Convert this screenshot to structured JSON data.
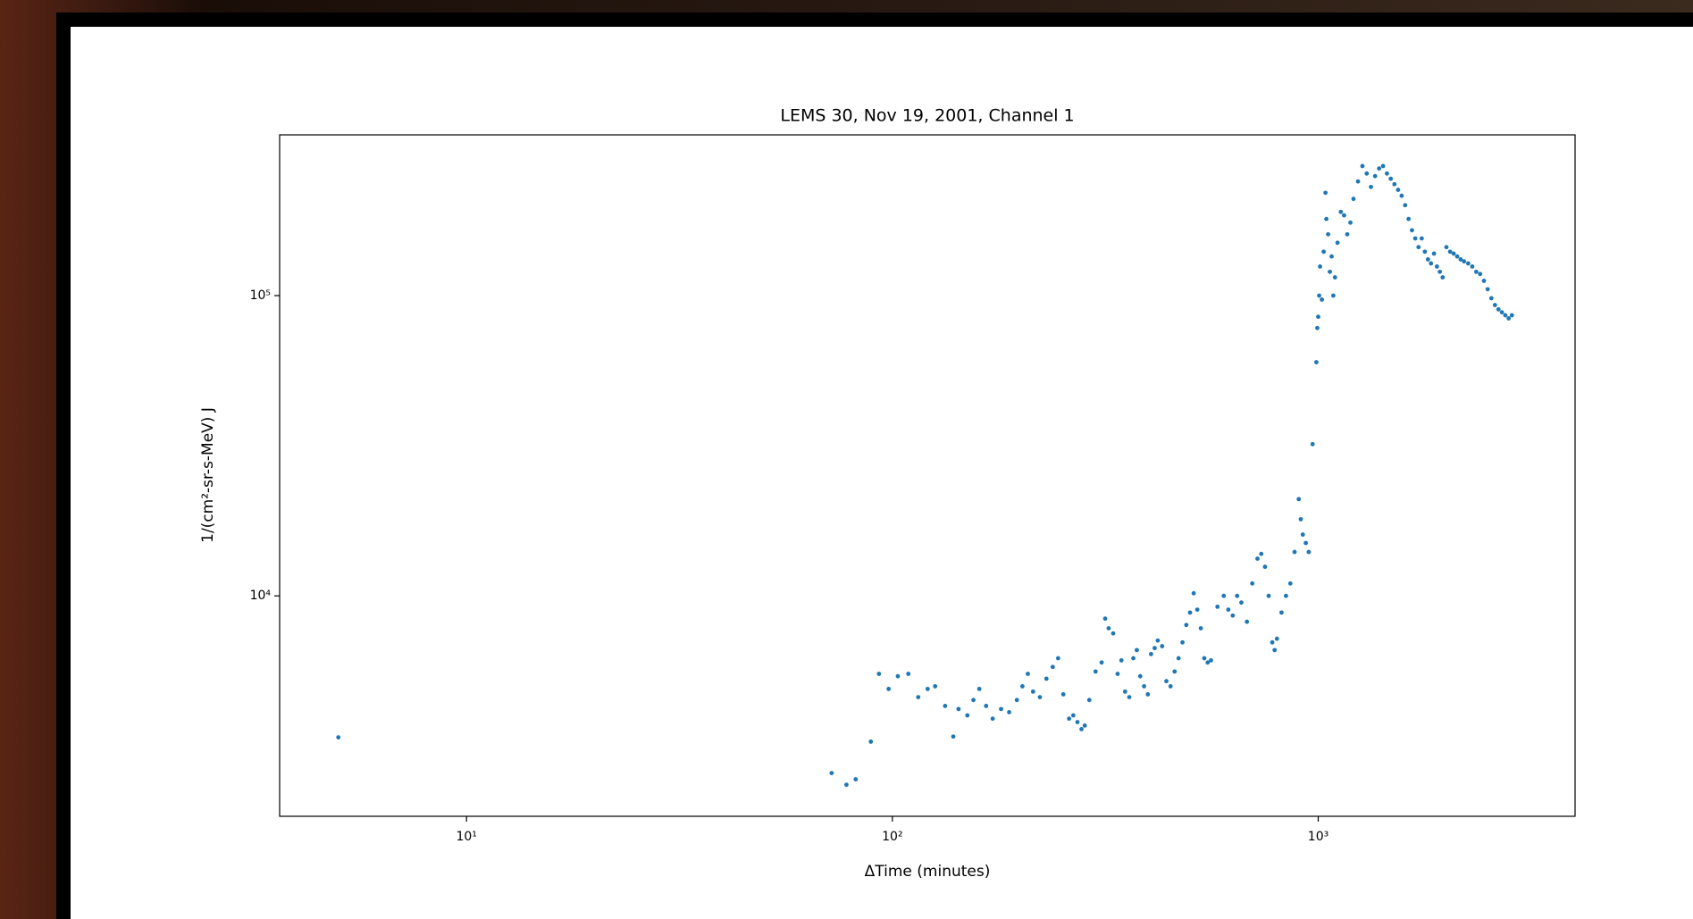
{
  "chart_data": {
    "type": "scatter",
    "title": "LEMS 30, Nov 19, 2001, Channel 1",
    "x_label": "ΔTime (minutes)",
    "y_label": "1/(cm²-sr-s-MeV) J",
    "xscale": "log",
    "yscale": "log",
    "xlim": [
      3.64,
      4010
    ],
    "ylim": [
      1845,
      343000
    ],
    "xticks": [
      {
        "value": 10,
        "label": "10¹"
      },
      {
        "value": 100,
        "label": "10²"
      },
      {
        "value": 1000,
        "label": "10³"
      }
    ],
    "yticks": [
      {
        "value": 10000,
        "label": "10⁴"
      },
      {
        "value": 100000,
        "label": "10⁵"
      }
    ],
    "grid": false,
    "color": "#1f77b4",
    "x": [
      5,
      72,
      78,
      82,
      89,
      93,
      98,
      103,
      109,
      115,
      121,
      126,
      133,
      139,
      143,
      150,
      155,
      160,
      166,
      172,
      180,
      188,
      196,
      202,
      208,
      214,
      222,
      230,
      238,
      245,
      252,
      260,
      266,
      272,
      278,
      283,
      290,
      300,
      310,
      316,
      322,
      330,
      338,
      345,
      352,
      360,
      368,
      375,
      382,
      390,
      398,
      405,
      413,
      420,
      430,
      440,
      450,
      460,
      470,
      480,
      490,
      500,
      510,
      520,
      530,
      540,
      550,
      560,
      580,
      600,
      615,
      630,
      645,
      660,
      680,
      700,
      720,
      735,
      750,
      765,
      780,
      790,
      800,
      820,
      840,
      860,
      880,
      900,
      910,
      920,
      935,
      950,
      970,
      990,
      995,
      1000,
      1005,
      1010,
      1020,
      1030,
      1040,
      1045,
      1055,
      1065,
      1075,
      1085,
      1095,
      1110,
      1130,
      1150,
      1170,
      1190,
      1210,
      1240,
      1270,
      1300,
      1330,
      1360,
      1390,
      1420,
      1450,
      1480,
      1510,
      1540,
      1570,
      1600,
      1630,
      1660,
      1690,
      1720,
      1750,
      1780,
      1810,
      1840,
      1870,
      1900,
      1930,
      1960,
      2000,
      2040,
      2080,
      2120,
      2160,
      2200,
      2250,
      2300,
      2350,
      2400,
      2450,
      2500,
      2550,
      2600,
      2650,
      2700,
      2750,
      2800,
      2850
    ],
    "values": [
      3380,
      2570,
      2350,
      2450,
      3270,
      5500,
      4900,
      5400,
      5500,
      4600,
      4900,
      5000,
      4300,
      3400,
      4200,
      4000,
      4500,
      4900,
      4300,
      3900,
      4200,
      4100,
      4500,
      5000,
      5500,
      4800,
      4600,
      5300,
      5800,
      6200,
      4700,
      3900,
      4000,
      3800,
      3600,
      3700,
      4500,
      5600,
      6000,
      8400,
      7800,
      7500,
      5500,
      6100,
      4800,
      4600,
      6200,
      6600,
      5400,
      5000,
      4700,
      6400,
      6700,
      7100,
      6800,
      5200,
      5000,
      5600,
      6200,
      7000,
      8000,
      8800,
      10200,
      9000,
      7800,
      6200,
      6000,
      6100,
      9200,
      10000,
      9000,
      8600,
      10000,
      9500,
      8200,
      11000,
      13300,
      13800,
      12500,
      10000,
      7000,
      6600,
      7200,
      8800,
      10000,
      11000,
      14000,
      21000,
      18000,
      16000,
      15000,
      14000,
      32000,
      60000,
      78000,
      85000,
      100000,
      125000,
      97000,
      140000,
      220000,
      180000,
      160000,
      120000,
      135000,
      100000,
      115000,
      150000,
      190000,
      185000,
      160000,
      175000,
      210000,
      240000,
      270000,
      255000,
      230000,
      250000,
      265000,
      270000,
      255000,
      245000,
      235000,
      225000,
      215000,
      200000,
      180000,
      165000,
      155000,
      145000,
      155000,
      140000,
      132000,
      128000,
      138000,
      125000,
      120000,
      115000,
      145000,
      140000,
      138000,
      135000,
      132000,
      130000,
      128000,
      125000,
      120000,
      118000,
      112000,
      105000,
      98000,
      93000,
      90000,
      88000,
      86000,
      84000,
      86000
    ]
  }
}
